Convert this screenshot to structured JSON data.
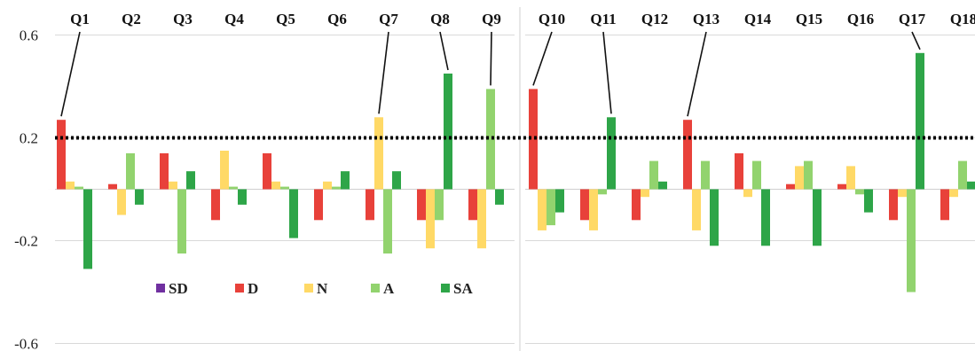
{
  "chart_data": {
    "type": "bar",
    "categories": [
      "Q1",
      "Q2",
      "Q3",
      "Q4",
      "Q5",
      "Q6",
      "Q7",
      "Q8",
      "Q9",
      "Q10",
      "Q11",
      "Q12",
      "Q13",
      "Q14",
      "Q15",
      "Q16",
      "Q17",
      "Q18"
    ],
    "series": [
      {
        "name": "SD",
        "color": "#7030A0",
        "values": [
          0,
          0,
          0,
          0,
          0,
          0,
          0,
          0,
          0,
          0,
          0,
          0,
          0,
          0,
          0,
          0,
          0,
          0
        ]
      },
      {
        "name": "D",
        "color": "#E8413A",
        "values": [
          0.27,
          0.02,
          0.14,
          -0.12,
          0.14,
          -0.12,
          -0.12,
          -0.12,
          -0.12,
          0.39,
          -0.12,
          -0.12,
          0.27,
          0.14,
          0.02,
          0.02,
          -0.12,
          -0.12
        ]
      },
      {
        "name": "N",
        "color": "#FFD966",
        "values": [
          0.03,
          -0.1,
          0.03,
          0.15,
          0.03,
          0.03,
          0.28,
          -0.23,
          -0.23,
          -0.16,
          -0.16,
          -0.03,
          -0.16,
          -0.03,
          0.09,
          0.09,
          -0.03,
          -0.03
        ]
      },
      {
        "name": "A",
        "color": "#92D36E",
        "values": [
          0.01,
          0.14,
          -0.25,
          0.01,
          0.01,
          0.01,
          -0.25,
          -0.12,
          0.39,
          -0.14,
          -0.02,
          0.11,
          0.11,
          0.11,
          0.11,
          -0.02,
          -0.4,
          0.11
        ]
      },
      {
        "name": "SA",
        "color": "#2EA548",
        "values": [
          -0.31,
          -0.06,
          0.07,
          -0.06,
          -0.19,
          0.07,
          0.07,
          0.45,
          -0.06,
          -0.09,
          0.28,
          0.03,
          -0.22,
          -0.22,
          -0.22,
          -0.09,
          0.53,
          0.03
        ]
      }
    ],
    "panels": [
      {
        "categories": [
          "Q1",
          "Q2",
          "Q3",
          "Q4",
          "Q5",
          "Q6",
          "Q7",
          "Q8",
          "Q9"
        ]
      },
      {
        "categories": [
          "Q10",
          "Q11",
          "Q12",
          "Q13",
          "Q14",
          "Q15",
          "Q16",
          "Q17",
          "Q18"
        ]
      }
    ],
    "yticks": [
      "0.6",
      "0.2",
      "-0.2",
      "-0.6"
    ],
    "ylim": [
      -0.6,
      0.6
    ],
    "reference_line": {
      "y": 0.2,
      "style": "dotted"
    },
    "callouts": [
      "Q1",
      "Q7",
      "Q8",
      "Q9",
      "Q10",
      "Q11",
      "Q13",
      "Q17"
    ],
    "grid": true,
    "legend_position": "bottom-left",
    "title": "",
    "xlabel": "",
    "ylabel": ""
  }
}
